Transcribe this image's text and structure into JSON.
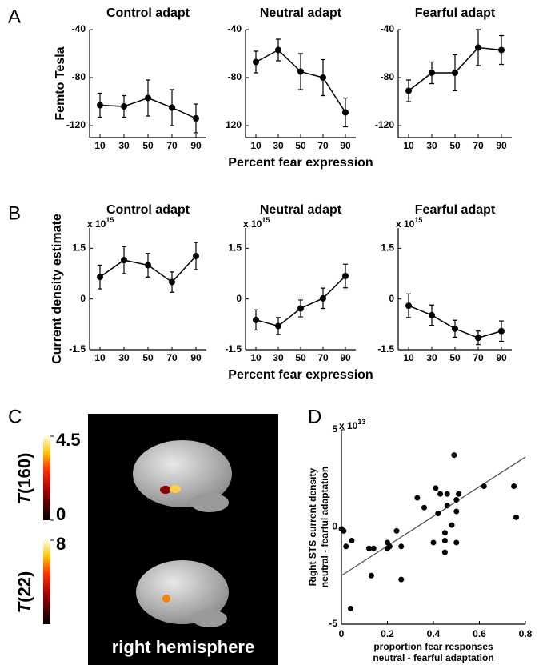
{
  "panel_labels": [
    "A",
    "B",
    "C",
    "D"
  ],
  "panel_c": {
    "colorbars": [
      {
        "symbol": "T",
        "df": "(160)",
        "lim": [
          0,
          4.5
        ],
        "ticks": [
          4.5,
          0
        ]
      },
      {
        "symbol": "T",
        "df": "(22)",
        "lim": [
          0,
          8
        ],
        "ticks": [
          8
        ]
      }
    ],
    "caption": "right hemisphere"
  },
  "chart_data": [
    {
      "type": "line",
      "title": "Control adapt",
      "y_label": "Femto Tesla",
      "categories": [
        "10",
        "30",
        "50",
        "70",
        "90"
      ],
      "values": [
        -103,
        -104,
        -97,
        -105,
        -114
      ],
      "errors": [
        10,
        9,
        15,
        15,
        12
      ],
      "ylim": [
        -130,
        -40
      ],
      "yticks": [
        -40,
        -80,
        -120
      ],
      "color": "#000000"
    },
    {
      "type": "line",
      "title": "Neutral adapt",
      "x_label": "Percent fear expression",
      "categories": [
        "10",
        "30",
        "50",
        "70",
        "90"
      ],
      "values": [
        -67,
        -57,
        -75,
        -80,
        -109
      ],
      "errors": [
        9,
        9,
        15,
        15,
        12
      ],
      "ylim": [
        -130,
        -40
      ],
      "yticks": [
        -40,
        -80,
        {
          "value": -120,
          "label": "120"
        }
      ],
      "color": "#000000"
    },
    {
      "type": "line",
      "title": "Fearful adapt",
      "categories": [
        "10",
        "30",
        "50",
        "70",
        "90"
      ],
      "values": [
        -91,
        -76,
        -76,
        -55,
        -57
      ],
      "errors": [
        9,
        9,
        15,
        15,
        12
      ],
      "ylim": [
        -130,
        -40
      ],
      "yticks": [
        -40,
        -80,
        -120
      ],
      "color": "#000000"
    },
    {
      "type": "line",
      "title": "Control adapt",
      "y_label": "Current density estimate",
      "multiplier": {
        "base": "x 10",
        "exponent": "15"
      },
      "categories": [
        "10",
        "30",
        "50",
        "70",
        "90"
      ],
      "values": [
        0.65,
        1.15,
        1.0,
        0.5,
        1.27
      ],
      "errors": [
        0.35,
        0.4,
        0.35,
        0.3,
        0.4
      ],
      "ylim": [
        -1.5,
        2.1
      ],
      "yticks": [
        1.5,
        0,
        -1.5
      ],
      "color": "#000000"
    },
    {
      "type": "line",
      "title": "Neutral adapt",
      "x_label": "Percent fear expression",
      "multiplier": {
        "base": "x 10",
        "exponent": "15"
      },
      "categories": [
        "10",
        "30",
        "50",
        "70",
        "90"
      ],
      "values": [
        -0.62,
        -0.8,
        -0.28,
        0.02,
        0.68
      ],
      "errors": [
        0.3,
        0.25,
        0.25,
        0.3,
        0.35
      ],
      "ylim": [
        -1.5,
        2.1
      ],
      "yticks": [
        1.5,
        0,
        -1.5
      ],
      "color": "#000000"
    },
    {
      "type": "line",
      "title": "Fearful adapt",
      "multiplier": {
        "base": "x 10",
        "exponent": "15"
      },
      "categories": [
        "10",
        "30",
        "50",
        "70",
        "90"
      ],
      "values": [
        -0.2,
        -0.48,
        -0.88,
        -1.15,
        -0.95
      ],
      "errors": [
        0.35,
        0.3,
        0.25,
        0.2,
        0.3
      ],
      "ylim": [
        -1.5,
        2.1
      ],
      "yticks": [
        1.5,
        0,
        -1.5
      ],
      "color": "#000000"
    },
    {
      "type": "scatter",
      "y_label": [
        "Right STS current density",
        "neutral - fearful adaptation"
      ],
      "x_label": [
        "proportion fear responses",
        "neutral - fearful adaptation"
      ],
      "multiplier": {
        "base": "x 10",
        "exponent": "13"
      },
      "x": [
        0,
        0.01,
        0.02,
        0.045,
        0.04,
        0.12,
        0.14,
        0.13,
        0.2,
        0.21,
        0.2,
        0.24,
        0.26,
        0.26,
        0.33,
        0.36,
        0.4,
        0.41,
        0.42,
        0.43,
        0.45,
        0.45,
        0.46,
        0.46,
        0.48,
        0.49,
        0.5,
        0.5,
        0.51,
        0.5,
        0.62,
        0.75,
        0.76,
        0.45
      ],
      "values": [
        -0.1,
        -0.2,
        -1.0,
        -0.7,
        -4.2,
        -1.1,
        -1.1,
        -2.5,
        -0.8,
        -1.0,
        -1.1,
        -0.2,
        -1.0,
        -2.7,
        1.5,
        1.0,
        -0.8,
        2.0,
        0.7,
        1.7,
        -0.3,
        -1.3,
        1.1,
        1.7,
        0.1,
        3.7,
        0.8,
        1.4,
        1.7,
        -0.8,
        2.1,
        2.1,
        0.5,
        -0.7
      ],
      "fit_line": {
        "x": [
          0,
          0.8
        ],
        "y": [
          -2.5,
          3.6
        ],
        "color": "#555555"
      },
      "xlim": [
        0,
        0.8
      ],
      "xticks": [
        0,
        0.2,
        0.4,
        0.6,
        0.8
      ],
      "ylim": [
        -5,
        5
      ],
      "yticks": [
        5,
        0,
        -5
      ],
      "color": "#000000"
    }
  ]
}
